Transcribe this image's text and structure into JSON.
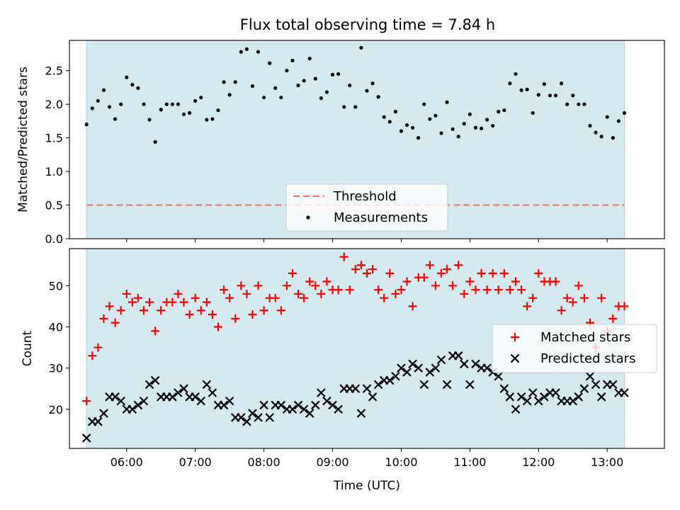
{
  "title": "Flux total observing time = 7.84 h",
  "colors": {
    "observing_span": "#d4eaf0",
    "threshold": "#f07070",
    "measurements": "#000000",
    "matched": "#ff0000",
    "predicted": "#000000",
    "legend_bg": "#ffffff",
    "axes": "#000000"
  },
  "chart_data": [
    {
      "type": "scatter",
      "ylabel": "Matched/Predicted stars",
      "ylim": [
        0,
        2.95
      ],
      "yticks": [
        0,
        0.5,
        1,
        1.5,
        2,
        2.5
      ],
      "ytick_labels": [
        "0.0",
        "0.5",
        "1.0",
        "1.5",
        "2.0",
        "2.5"
      ],
      "xlim": [
        "05:10",
        "13:50"
      ],
      "x_unit": "time (UTC)",
      "observing_span": [
        "05:25",
        "13:15"
      ],
      "threshold": {
        "name": "Threshold",
        "value": 0.5,
        "x_range": [
          "05:25",
          "13:15"
        ],
        "style": "dashed"
      },
      "legend": {
        "location": "lower center",
        "entries": [
          "Threshold",
          "Measurements"
        ]
      },
      "series": [
        {
          "name": "Measurements",
          "marker": "dot",
          "x": [
            "05:25",
            "05:30",
            "05:35",
            "05:40",
            "05:45",
            "05:50",
            "05:55",
            "06:00",
            "06:05",
            "06:10",
            "06:15",
            "06:20",
            "06:25",
            "06:30",
            "06:35",
            "06:40",
            "06:45",
            "06:50",
            "06:55",
            "07:00",
            "07:05",
            "07:10",
            "07:15",
            "07:20",
            "07:25",
            "07:30",
            "07:35",
            "07:40",
            "07:45",
            "07:50",
            "07:55",
            "08:00",
            "08:05",
            "08:10",
            "08:15",
            "08:20",
            "08:25",
            "08:30",
            "08:35",
            "08:40",
            "08:45",
            "08:50",
            "08:55",
            "09:00",
            "09:05",
            "09:10",
            "09:15",
            "09:20",
            "09:25",
            "09:30",
            "09:35",
            "09:40",
            "09:45",
            "09:50",
            "09:55",
            "10:00",
            "10:05",
            "10:10",
            "10:15",
            "10:20",
            "10:25",
            "10:30",
            "10:35",
            "10:40",
            "10:45",
            "10:50",
            "10:55",
            "11:00",
            "11:05",
            "11:10",
            "11:15",
            "11:20",
            "11:25",
            "11:30",
            "11:35",
            "11:40",
            "11:45",
            "11:50",
            "11:55",
            "12:00",
            "12:05",
            "12:10",
            "12:15",
            "12:20",
            "12:25",
            "12:30",
            "12:35",
            "12:40",
            "12:45",
            "12:50",
            "12:55",
            "13:00",
            "13:05",
            "13:10",
            "13:15"
          ],
          "y": [
            1.7,
            1.94,
            2.05,
            2.21,
            1.96,
            1.78,
            2.0,
            2.4,
            2.29,
            2.24,
            2.0,
            1.77,
            1.44,
            1.92,
            2.0,
            2.0,
            2.0,
            1.85,
            1.87,
            2.05,
            2.1,
            1.77,
            1.78,
            1.91,
            2.33,
            2.14,
            2.33,
            2.78,
            2.82,
            2.27,
            2.78,
            2.1,
            2.61,
            2.24,
            2.1,
            2.5,
            2.65,
            2.28,
            2.35,
            2.68,
            2.38,
            2.09,
            2.18,
            2.44,
            2.45,
            1.96,
            2.28,
            1.96,
            2.84,
            2.2,
            2.31,
            2.11,
            1.81,
            1.74,
            1.89,
            1.6,
            1.69,
            1.65,
            1.5,
            2.0,
            1.78,
            1.83,
            1.57,
            2.03,
            1.63,
            1.52,
            1.71,
            1.85,
            1.65,
            1.64,
            1.77,
            1.68,
            1.89,
            1.91,
            2.31,
            2.45,
            2.21,
            2.22,
            1.87,
            2.14,
            2.3,
            2.13,
            2.13,
            2.31,
            2.0,
            2.13,
            2.0,
            2.0,
            1.68,
            1.58,
            1.52,
            1.81,
            1.5,
            1.75,
            1.87
          ]
        }
      ]
    },
    {
      "type": "scatter",
      "xlabel": "Time (UTC)",
      "ylabel": "Count",
      "ylim": [
        10.5,
        59
      ],
      "yticks": [
        20,
        30,
        40,
        50
      ],
      "ytick_labels": [
        "20",
        "30",
        "40",
        "50"
      ],
      "xlim": [
        "05:10",
        "13:50"
      ],
      "xticks": [
        "06:00",
        "07:00",
        "08:00",
        "09:00",
        "10:00",
        "11:00",
        "12:00",
        "13:00"
      ],
      "x_unit": "time (UTC)",
      "observing_span": [
        "05:25",
        "13:15"
      ],
      "legend": {
        "location": "center right",
        "entries": [
          "Matched stars",
          "Predicted stars"
        ]
      },
      "series": [
        {
          "name": "Matched stars",
          "marker": "plus",
          "x": [
            "05:25",
            "05:30",
            "05:35",
            "05:40",
            "05:45",
            "05:50",
            "05:55",
            "06:00",
            "06:05",
            "06:10",
            "06:15",
            "06:20",
            "06:25",
            "06:30",
            "06:35",
            "06:40",
            "06:45",
            "06:50",
            "06:55",
            "07:00",
            "07:05",
            "07:10",
            "07:15",
            "07:20",
            "07:25",
            "07:30",
            "07:35",
            "07:40",
            "07:45",
            "07:50",
            "07:55",
            "08:00",
            "08:05",
            "08:10",
            "08:15",
            "08:20",
            "08:25",
            "08:30",
            "08:35",
            "08:40",
            "08:45",
            "08:50",
            "08:55",
            "09:00",
            "09:05",
            "09:10",
            "09:15",
            "09:20",
            "09:25",
            "09:30",
            "09:35",
            "09:40",
            "09:45",
            "09:50",
            "09:55",
            "10:00",
            "10:05",
            "10:10",
            "10:15",
            "10:20",
            "10:25",
            "10:30",
            "10:35",
            "10:40",
            "10:45",
            "10:50",
            "10:55",
            "11:00",
            "11:05",
            "11:10",
            "11:15",
            "11:20",
            "11:25",
            "11:30",
            "11:35",
            "11:40",
            "11:45",
            "11:50",
            "11:55",
            "12:00",
            "12:05",
            "12:10",
            "12:15",
            "12:20",
            "12:25",
            "12:30",
            "12:35",
            "12:40",
            "12:45",
            "12:50",
            "12:55",
            "13:00",
            "13:05",
            "13:10",
            "13:15"
          ],
          "y": [
            22,
            33,
            35,
            42,
            45,
            41,
            44,
            48,
            46,
            47,
            44,
            46,
            39,
            44,
            46,
            46,
            48,
            46,
            43,
            47,
            44,
            46,
            43,
            40,
            49,
            47,
            42,
            50,
            48,
            43,
            50,
            44,
            47,
            47,
            44,
            50,
            53,
            48,
            47,
            51,
            50,
            48,
            51,
            49,
            49,
            57,
            49,
            54,
            55,
            53,
            54,
            49,
            47,
            53,
            48,
            49,
            51,
            45,
            52,
            52,
            55,
            50,
            53,
            54,
            50,
            55,
            48,
            51,
            49,
            53,
            49,
            53,
            49,
            53,
            49,
            51,
            49,
            45,
            47,
            53,
            51,
            51,
            51,
            44,
            47,
            46,
            50,
            47,
            41,
            35,
            47,
            39,
            42,
            45,
            45
          ]
        },
        {
          "name": "Predicted stars",
          "marker": "x",
          "x": [
            "05:25",
            "05:30",
            "05:35",
            "05:40",
            "05:45",
            "05:50",
            "05:55",
            "06:00",
            "06:05",
            "06:10",
            "06:15",
            "06:20",
            "06:25",
            "06:30",
            "06:35",
            "06:40",
            "06:45",
            "06:50",
            "06:55",
            "07:00",
            "07:05",
            "07:10",
            "07:15",
            "07:20",
            "07:25",
            "07:30",
            "07:35",
            "07:40",
            "07:45",
            "07:50",
            "07:55",
            "08:00",
            "08:05",
            "08:10",
            "08:15",
            "08:20",
            "08:25",
            "08:30",
            "08:35",
            "08:40",
            "08:45",
            "08:50",
            "08:55",
            "09:00",
            "09:05",
            "09:10",
            "09:15",
            "09:20",
            "09:25",
            "09:30",
            "09:35",
            "09:40",
            "09:45",
            "09:50",
            "09:55",
            "10:00",
            "10:05",
            "10:10",
            "10:15",
            "10:20",
            "10:25",
            "10:30",
            "10:35",
            "10:40",
            "10:45",
            "10:50",
            "10:55",
            "11:00",
            "11:05",
            "11:10",
            "11:15",
            "11:20",
            "11:25",
            "11:30",
            "11:35",
            "11:40",
            "11:45",
            "11:50",
            "11:55",
            "12:00",
            "12:05",
            "12:10",
            "12:15",
            "12:20",
            "12:25",
            "12:30",
            "12:35",
            "12:40",
            "12:45",
            "12:50",
            "12:55",
            "13:00",
            "13:05",
            "13:10",
            "13:15"
          ],
          "y": [
            13,
            17,
            17,
            19,
            23,
            23,
            22,
            20,
            20,
            21,
            22,
            26,
            27,
            23,
            23,
            23,
            24,
            25,
            23,
            23,
            22,
            26,
            24,
            21,
            21,
            22,
            18,
            18,
            17,
            19,
            18,
            21,
            18,
            21,
            21,
            20,
            20,
            21,
            20,
            19,
            21,
            24,
            22,
            21,
            20,
            25,
            25,
            25,
            19,
            25,
            23,
            26,
            27,
            27,
            28,
            30,
            29,
            31,
            30,
            26,
            29,
            30,
            32,
            26,
            33,
            33,
            31,
            26,
            31,
            30,
            30,
            29,
            28,
            25,
            23,
            20,
            23,
            22,
            24,
            22,
            23,
            24,
            24,
            22,
            22,
            22,
            23,
            25,
            28,
            26,
            23,
            26,
            26,
            24,
            24
          ]
        }
      ]
    }
  ]
}
